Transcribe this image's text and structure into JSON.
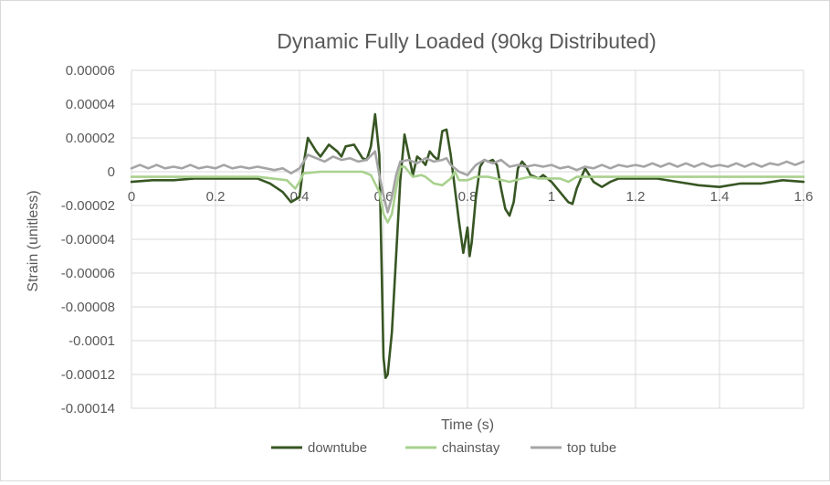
{
  "chart_data": {
    "type": "line",
    "title": "Dynamic Fully Loaded (90kg Distributed)",
    "xlabel": "Time (s)",
    "ylabel": "Strain (unitless)",
    "xlim": [
      0,
      1.6
    ],
    "ylim": [
      -0.00014,
      6e-05
    ],
    "x_ticks": [
      0,
      0.2,
      0.4,
      0.6,
      0.8,
      1,
      1.2,
      1.4,
      1.6
    ],
    "x_tick_labels": [
      "0",
      "0.2",
      "0.4",
      "0.6",
      "0.8",
      "1",
      "1.2",
      "1.4",
      "1.6"
    ],
    "y_ticks": [
      6e-05,
      4e-05,
      2e-05,
      0,
      -2e-05,
      -4e-05,
      -6e-05,
      -8e-05,
      -0.0001,
      -0.00012,
      -0.00014
    ],
    "y_tick_labels": [
      "0.00006",
      "0.00004",
      "0.00002",
      "0",
      "-0.00002",
      "-0.00004",
      "-0.00006",
      "-0.00008",
      "-0.0001",
      "-0.00012",
      "-0.00014"
    ],
    "grid": true,
    "legend_position": "bottom",
    "series": [
      {
        "name": "downtube",
        "color": "#375623",
        "points": [
          [
            0,
            -6e-06
          ],
          [
            0.05,
            -5e-06
          ],
          [
            0.1,
            -5e-06
          ],
          [
            0.15,
            -4e-06
          ],
          [
            0.2,
            -4e-06
          ],
          [
            0.25,
            -4e-06
          ],
          [
            0.3,
            -4e-06
          ],
          [
            0.33,
            -7e-06
          ],
          [
            0.36,
            -1.2e-05
          ],
          [
            0.38,
            -1.8e-05
          ],
          [
            0.4,
            -1.5e-05
          ],
          [
            0.41,
            5e-06
          ],
          [
            0.42,
            2e-05
          ],
          [
            0.44,
            1.2e-05
          ],
          [
            0.45,
            9e-06
          ],
          [
            0.47,
            1.6e-05
          ],
          [
            0.49,
            1.2e-05
          ],
          [
            0.5,
            9e-06
          ],
          [
            0.51,
            1.5e-05
          ],
          [
            0.53,
            1.6e-05
          ],
          [
            0.55,
            8e-06
          ],
          [
            0.56,
            7e-06
          ],
          [
            0.57,
            1.5e-05
          ],
          [
            0.58,
            3.4e-05
          ],
          [
            0.59,
            1e-05
          ],
          [
            0.6,
            -0.00011
          ],
          [
            0.605,
            -0.000122
          ],
          [
            0.61,
            -0.00012
          ],
          [
            0.62,
            -9.5e-05
          ],
          [
            0.63,
            -5e-05
          ],
          [
            0.64,
            -5e-06
          ],
          [
            0.65,
            2.2e-05
          ],
          [
            0.66,
            1e-05
          ],
          [
            0.67,
            -2e-06
          ],
          [
            0.68,
            9e-06
          ],
          [
            0.69,
            7e-06
          ],
          [
            0.7,
            4e-06
          ],
          [
            0.71,
            1.2e-05
          ],
          [
            0.72,
            9e-06
          ],
          [
            0.73,
            7e-06
          ],
          [
            0.74,
            2.4e-05
          ],
          [
            0.75,
            2.5e-05
          ],
          [
            0.76,
            1e-05
          ],
          [
            0.77,
            -1e-05
          ],
          [
            0.78,
            -3e-05
          ],
          [
            0.79,
            -4.8e-05
          ],
          [
            0.8,
            -3.3e-05
          ],
          [
            0.805,
            -5e-05
          ],
          [
            0.81,
            -4.2e-05
          ],
          [
            0.82,
            -1.5e-05
          ],
          [
            0.83,
            3e-06
          ],
          [
            0.84,
            7e-06
          ],
          [
            0.85,
            6e-06
          ],
          [
            0.86,
            7e-06
          ],
          [
            0.87,
            4e-06
          ],
          [
            0.88,
            -1e-05
          ],
          [
            0.89,
            -2.2e-05
          ],
          [
            0.9,
            -2.6e-05
          ],
          [
            0.91,
            -1.8e-05
          ],
          [
            0.92,
            2e-06
          ],
          [
            0.93,
            6e-06
          ],
          [
            0.94,
            3e-06
          ],
          [
            0.95,
            -2e-06
          ],
          [
            0.97,
            -4e-06
          ],
          [
            0.98,
            -2e-06
          ],
          [
            1.0,
            -6e-06
          ],
          [
            1.02,
            -1.2e-05
          ],
          [
            1.04,
            -1.8e-05
          ],
          [
            1.05,
            -1.9e-05
          ],
          [
            1.06,
            -1e-05
          ],
          [
            1.08,
            2e-06
          ],
          [
            1.1,
            -6e-06
          ],
          [
            1.12,
            -9e-06
          ],
          [
            1.14,
            -6e-06
          ],
          [
            1.16,
            -4e-06
          ],
          [
            1.2,
            -4e-06
          ],
          [
            1.25,
            -4e-06
          ],
          [
            1.3,
            -6e-06
          ],
          [
            1.35,
            -8e-06
          ],
          [
            1.4,
            -9e-06
          ],
          [
            1.45,
            -7e-06
          ],
          [
            1.5,
            -7e-06
          ],
          [
            1.55,
            -5e-06
          ],
          [
            1.6,
            -6e-06
          ]
        ]
      },
      {
        "name": "chainstay",
        "color": "#a9d18e",
        "points": [
          [
            0,
            -3e-06
          ],
          [
            0.1,
            -3e-06
          ],
          [
            0.2,
            -3e-06
          ],
          [
            0.3,
            -3e-06
          ],
          [
            0.37,
            -5e-06
          ],
          [
            0.39,
            -1e-05
          ],
          [
            0.4,
            -6e-06
          ],
          [
            0.41,
            -1e-06
          ],
          [
            0.45,
            0
          ],
          [
            0.5,
            0
          ],
          [
            0.55,
            0
          ],
          [
            0.57,
            -2e-06
          ],
          [
            0.59,
            -1.2e-05
          ],
          [
            0.6,
            -2.5e-05
          ],
          [
            0.61,
            -3e-05
          ],
          [
            0.62,
            -2.5e-05
          ],
          [
            0.63,
            -1e-05
          ],
          [
            0.64,
            3e-06
          ],
          [
            0.65,
            3e-06
          ],
          [
            0.67,
            -3e-06
          ],
          [
            0.69,
            -2e-06
          ],
          [
            0.7,
            -3e-06
          ],
          [
            0.72,
            -7e-06
          ],
          [
            0.74,
            -8e-06
          ],
          [
            0.76,
            -4e-06
          ],
          [
            0.77,
            0
          ],
          [
            0.78,
            -5e-06
          ],
          [
            0.8,
            -5e-06
          ],
          [
            0.82,
            -3e-06
          ],
          [
            0.85,
            -3e-06
          ],
          [
            0.9,
            -6e-06
          ],
          [
            0.93,
            -4e-06
          ],
          [
            0.95,
            -3e-06
          ],
          [
            0.97,
            -4e-06
          ],
          [
            1.0,
            -4e-06
          ],
          [
            1.02,
            -4e-06
          ],
          [
            1.04,
            -6e-06
          ],
          [
            1.06,
            -3e-06
          ],
          [
            1.1,
            -3e-06
          ],
          [
            1.2,
            -3e-06
          ],
          [
            1.3,
            -3e-06
          ],
          [
            1.4,
            -3e-06
          ],
          [
            1.5,
            -3e-06
          ],
          [
            1.6,
            -3e-06
          ]
        ]
      },
      {
        "name": "top tube",
        "color": "#a5a5a5",
        "points": [
          [
            0,
            2e-06
          ],
          [
            0.02,
            4e-06
          ],
          [
            0.04,
            2e-06
          ],
          [
            0.06,
            4e-06
          ],
          [
            0.08,
            2e-06
          ],
          [
            0.1,
            3e-06
          ],
          [
            0.12,
            2e-06
          ],
          [
            0.14,
            4e-06
          ],
          [
            0.16,
            2e-06
          ],
          [
            0.18,
            3e-06
          ],
          [
            0.2,
            2e-06
          ],
          [
            0.22,
            4e-06
          ],
          [
            0.24,
            2e-06
          ],
          [
            0.26,
            3e-06
          ],
          [
            0.28,
            2e-06
          ],
          [
            0.3,
            3e-06
          ],
          [
            0.32,
            2e-06
          ],
          [
            0.34,
            1e-06
          ],
          [
            0.36,
            2e-06
          ],
          [
            0.38,
            -1e-06
          ],
          [
            0.4,
            2e-06
          ],
          [
            0.41,
            6e-06
          ],
          [
            0.42,
            1e-05
          ],
          [
            0.44,
            8e-06
          ],
          [
            0.46,
            6e-06
          ],
          [
            0.48,
            9e-06
          ],
          [
            0.5,
            7e-06
          ],
          [
            0.52,
            8e-06
          ],
          [
            0.54,
            6e-06
          ],
          [
            0.56,
            7e-06
          ],
          [
            0.58,
            1.2e-05
          ],
          [
            0.59,
            -2e-06
          ],
          [
            0.6,
            -1.4e-05
          ],
          [
            0.61,
            -2.4e-05
          ],
          [
            0.62,
            -1.5e-05
          ],
          [
            0.63,
            -2e-06
          ],
          [
            0.64,
            6e-06
          ],
          [
            0.66,
            7e-06
          ],
          [
            0.68,
            5e-06
          ],
          [
            0.7,
            8e-06
          ],
          [
            0.72,
            6e-06
          ],
          [
            0.74,
            7e-06
          ],
          [
            0.75,
            8e-06
          ],
          [
            0.76,
            4e-06
          ],
          [
            0.78,
            0
          ],
          [
            0.8,
            -2e-06
          ],
          [
            0.82,
            4e-06
          ],
          [
            0.84,
            7e-06
          ],
          [
            0.86,
            5e-06
          ],
          [
            0.88,
            7e-06
          ],
          [
            0.9,
            3e-06
          ],
          [
            0.92,
            4e-06
          ],
          [
            0.94,
            3e-06
          ],
          [
            0.96,
            4e-06
          ],
          [
            0.98,
            3e-06
          ],
          [
            1.0,
            4e-06
          ],
          [
            1.02,
            2e-06
          ],
          [
            1.04,
            3e-06
          ],
          [
            1.06,
            1e-06
          ],
          [
            1.08,
            3e-06
          ],
          [
            1.1,
            2e-06
          ],
          [
            1.12,
            4e-06
          ],
          [
            1.14,
            2e-06
          ],
          [
            1.16,
            4e-06
          ],
          [
            1.18,
            3e-06
          ],
          [
            1.2,
            4e-06
          ],
          [
            1.22,
            3e-06
          ],
          [
            1.24,
            5e-06
          ],
          [
            1.26,
            3e-06
          ],
          [
            1.28,
            5e-06
          ],
          [
            1.3,
            3e-06
          ],
          [
            1.32,
            5e-06
          ],
          [
            1.34,
            3e-06
          ],
          [
            1.36,
            5e-06
          ],
          [
            1.38,
            3e-06
          ],
          [
            1.4,
            4e-06
          ],
          [
            1.42,
            3e-06
          ],
          [
            1.44,
            5e-06
          ],
          [
            1.46,
            3e-06
          ],
          [
            1.48,
            5e-06
          ],
          [
            1.5,
            3e-06
          ],
          [
            1.52,
            5e-06
          ],
          [
            1.54,
            4e-06
          ],
          [
            1.56,
            6e-06
          ],
          [
            1.58,
            4e-06
          ],
          [
            1.6,
            6e-06
          ]
        ]
      }
    ]
  }
}
